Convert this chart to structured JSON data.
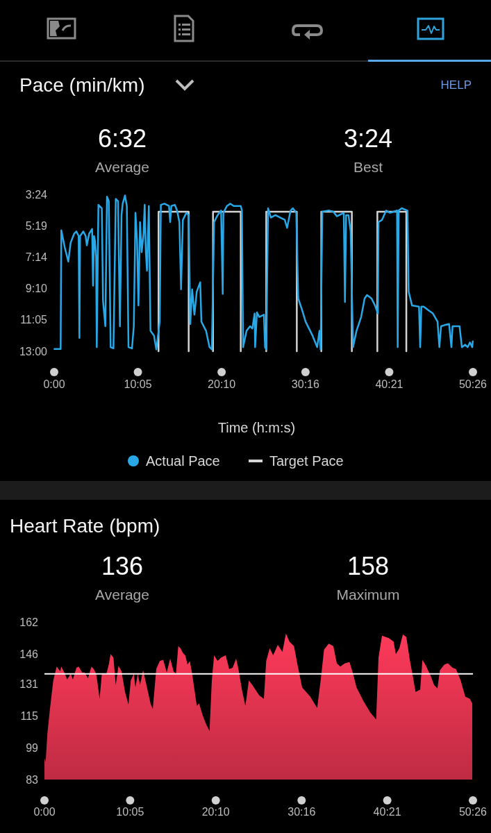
{
  "chart_data": [
    {
      "type": "line",
      "title": "Pace (min/km)",
      "annotations": [
        "6:32",
        "Average",
        "3:24",
        "Best",
        "HELP"
      ],
      "xlabel": "Time (h:m:s)",
      "legend": "bottom",
      "xlim": [
        0,
        50.4333
      ],
      "ylim": [
        13,
        3.4
      ],
      "xticks": [
        {
          "value": 0,
          "label": "0:00"
        },
        {
          "value": 10.0833,
          "label": "10:05"
        },
        {
          "value": 20.1667,
          "label": "20:10"
        },
        {
          "value": 30.2667,
          "label": "30:16"
        },
        {
          "value": 40.35,
          "label": "40:21"
        },
        {
          "value": 50.4333,
          "label": "50:26"
        }
      ],
      "yticks": [
        {
          "value": 3.4,
          "label": "3:24"
        },
        {
          "value": 5.3167,
          "label": "5:19"
        },
        {
          "value": 7.2333,
          "label": "7:14"
        },
        {
          "value": 9.1667,
          "label": "9:10"
        },
        {
          "value": 11.0833,
          "label": "11:05"
        },
        {
          "value": 13,
          "label": "13:00"
        }
      ],
      "series": [
        {
          "name": "Actual Pace",
          "color": "#29a8e8",
          "x": [
            0.03,
            0.78,
            0.86,
            1.28,
            1.7,
            1.98,
            2.4,
            2.68,
            2.95,
            3.04,
            3.12,
            3.51,
            3.79,
            3.93,
            4.21,
            4.57,
            4.68,
            4.8,
            4.91,
            5.05,
            5.13,
            5.33,
            5.74,
            5.88,
            6.16,
            6.36,
            6.58,
            6.8,
            7.14,
            7.42,
            7.69,
            7.92,
            8.11,
            8.25,
            8.53,
            8.75,
            8.95,
            9.37,
            9.59,
            9.79,
            9.98,
            10.15,
            10.34,
            10.54,
            10.76,
            10.9,
            11.04,
            11.18,
            11.4,
            11.6,
            12.02,
            12.3,
            12.71,
            12.85,
            13.27,
            13.83,
            13.97,
            14.11,
            14.53,
            14.8,
            15.08,
            15.28,
            15.5,
            15.92,
            16.2,
            16.39,
            16.62,
            16.89,
            17.17,
            17.59,
            17.73,
            18.29,
            18.71,
            18.99,
            19.26,
            19.68,
            20.1,
            20.3,
            20.38,
            20.8,
            21.22,
            21.63,
            22.47,
            22.61,
            22.75,
            23.17,
            23.59,
            23.87,
            24.14,
            24.2,
            24.42,
            24.7,
            25.26,
            25.4,
            25.54,
            25.76,
            26.1,
            26.65,
            27.21,
            27.77,
            28.05,
            28.47,
            28.74,
            29.16,
            29.39,
            29.86,
            30.28,
            31.11,
            31.67,
            31.95,
            32.09,
            32.29,
            33.07,
            33.62,
            34.04,
            34.88,
            35.02,
            35.16,
            35.44,
            35.71,
            35.99,
            36.41,
            36.97,
            37.39,
            37.67,
            38.22,
            38.64,
            38.98,
            39.06,
            39.48,
            39.98,
            40.45,
            40.87,
            41.29,
            41.37,
            41.49,
            41.85,
            42.55,
            42.69,
            43.1,
            43.94,
            44.08,
            44.22,
            44.5,
            45.05,
            45.61,
            46.17,
            46.39,
            46.59,
            47.01,
            47.56,
            47.84,
            47.98,
            48.4,
            48.82,
            49.1,
            49.51,
            49.79,
            50.07,
            50.35,
            50.41
          ],
          "values": [
            12.86,
            12.86,
            5.6,
            6.66,
            7.51,
            6.37,
            5.81,
            5.67,
            5.95,
            12.18,
            5.95,
            5.67,
            5.95,
            6.52,
            5.81,
            5.52,
            8.99,
            5.95,
            6.23,
            7.22,
            12.75,
            4.04,
            4.25,
            9.91,
            11.47,
            3.54,
            3.82,
            12.75,
            12.82,
            3.68,
            3.82,
            11.47,
            4.67,
            3.97,
            3.47,
            4.11,
            12.75,
            12.82,
            11.47,
            4.53,
            6.23,
            10.2,
            5.1,
            6.94,
            5.81,
            4.04,
            6.94,
            8.07,
            4.11,
            11.75,
            12.04,
            12.89,
            11.19,
            4.04,
            3.97,
            4.11,
            5.1,
            4.11,
            4.04,
            4.39,
            5.1,
            9.21,
            4.96,
            4.53,
            4.67,
            11.33,
            9.21,
            10.76,
            9.35,
            8.78,
            11.19,
            11.75,
            12.75,
            12.89,
            5.1,
            4.67,
            4.39,
            9.49,
            4.53,
            4.11,
            3.97,
            4.11,
            4.11,
            4.39,
            12.75,
            11.75,
            11.47,
            11.61,
            10.69,
            12.75,
            10.62,
            10.9,
            10.76,
            12.75,
            12.89,
            4.25,
            4.82,
            4.67,
            4.82,
            4.96,
            5.45,
            4.39,
            4.25,
            4.53,
            9.77,
            10.48,
            11.19,
            12.04,
            12.75,
            11.75,
            12.89,
            4.46,
            4.39,
            4.46,
            4.74,
            4.53,
            9.98,
            4.67,
            4.67,
            5.67,
            12.75,
            11.75,
            10.9,
            9.77,
            9.56,
            9.77,
            10.2,
            10.69,
            5.1,
            4.96,
            4.39,
            4.53,
            4.46,
            4.39,
            12.75,
            4.39,
            4.25,
            4.39,
            9.35,
            10.2,
            10.27,
            12.75,
            10.27,
            10.27,
            10.48,
            10.69,
            11.19,
            12.75,
            11.47,
            11.4,
            11.33,
            12.75,
            11.47,
            11.47,
            11.47,
            12.75,
            12.6,
            12.75,
            12.46,
            12.75,
            12.39
          ]
        },
        {
          "name": "Target Pace",
          "color": "#d4d4d4",
          "x": [
            12.57,
            12.57,
            16.2,
            16.2,
            17.5,
            19.13,
            19.13,
            22.47,
            22.47,
            24.0,
            25.54,
            25.54,
            29.22,
            29.22,
            30.5,
            32.17,
            32.17,
            35.85,
            35.85,
            37.5,
            38.92,
            38.92,
            42.41,
            42.41
          ],
          "values": [
            13,
            4.46,
            4.46,
            13,
            null,
            13,
            4.46,
            4.46,
            13,
            null,
            13,
            4.46,
            4.46,
            13,
            null,
            13,
            4.46,
            4.46,
            13,
            null,
            13,
            4.46,
            4.46,
            13
          ]
        }
      ]
    },
    {
      "type": "area",
      "title": "Heart Rate (bpm)",
      "annotations": [
        "136",
        "Average",
        "158",
        "Maximum"
      ],
      "xlim": [
        0,
        50.4333
      ],
      "ylim": [
        83,
        162
      ],
      "xticks": [
        {
          "value": 0,
          "label": "0:00"
        },
        {
          "value": 10.0833,
          "label": "10:05"
        },
        {
          "value": 20.1667,
          "label": "20:10"
        },
        {
          "value": 30.2667,
          "label": "30:16"
        },
        {
          "value": 40.35,
          "label": "40:21"
        },
        {
          "value": 50.4333,
          "label": "50:26"
        }
      ],
      "yticks": [
        83,
        99,
        115,
        131,
        146,
        162
      ],
      "ref_lines": [
        {
          "axis": "y",
          "value": 136,
          "color": "#ffffff"
        }
      ],
      "series": [
        {
          "color": "#e0334f",
          "x": [
            0.0,
            0.14,
            0.35,
            0.63,
            1.04,
            1.44,
            1.85,
            1.99,
            2.4,
            2.67,
            2.94,
            3.08,
            3.35,
            3.76,
            4.03,
            4.44,
            4.71,
            5.12,
            5.53,
            5.8,
            6.08,
            6.21,
            6.49,
            6.76,
            7.3,
            7.57,
            7.79,
            8.12,
            8.39,
            8.72,
            9.07,
            9.48,
            9.89,
            10.16,
            10.52,
            10.71,
            10.98,
            11.25,
            11.61,
            12.07,
            12.48,
            12.75,
            13.16,
            13.57,
            13.98,
            14.39,
            14.8,
            15.2,
            15.48,
            15.75,
            16.02,
            16.29,
            16.57,
            16.84,
            17.11,
            17.38,
            17.93,
            18.2,
            18.61,
            19.02,
            19.43,
            19.7,
            19.97,
            20.38,
            20.79,
            21.33,
            21.74,
            22.15,
            22.56,
            22.83,
            23.24,
            23.65,
            24.06,
            24.47,
            25.28,
            25.83,
            26.1,
            26.51,
            26.92,
            27.46,
            28.01,
            28.42,
            28.83,
            29.37,
            29.78,
            30.33,
            31.28,
            32.1,
            32.51,
            32.91,
            33.46,
            34.0,
            34.41,
            34.82,
            35.37,
            35.91,
            36.32,
            36.73,
            37.55,
            38.36,
            39.04,
            39.32,
            39.73,
            40.54,
            41.09,
            41.36,
            41.77,
            42.18,
            42.59,
            43.0,
            43.4,
            43.68,
            44.22,
            44.49,
            44.9,
            45.45,
            45.86,
            46.26,
            46.54,
            47.08,
            47.49,
            48.04,
            48.44,
            48.99,
            49.53,
            50.08,
            50.35
          ],
          "values": [
            93.6,
            91.8,
            106.2,
            117.7,
            132.7,
            139.6,
            137.3,
            139.6,
            136.1,
            133.2,
            135.0,
            136.1,
            133.2,
            139.0,
            139.6,
            136.7,
            136.7,
            133.8,
            139.6,
            138.4,
            136.1,
            132.7,
            123.5,
            136.1,
            136.1,
            140.7,
            145.9,
            144.2,
            130.4,
            140.1,
            137.3,
            126.9,
            120.6,
            132.7,
            136.1,
            129.2,
            136.1,
            130.4,
            137.8,
            129.2,
            121.2,
            118.3,
            138.4,
            142.4,
            143.0,
            136.7,
            143.6,
            137.3,
            136.1,
            149.9,
            148.8,
            146.5,
            145.3,
            140.7,
            142.4,
            136.1,
            120.0,
            121.2,
            115.4,
            110.8,
            107.4,
            132.7,
            145.3,
            142.4,
            144.2,
            145.3,
            138.4,
            139.0,
            143.6,
            138.4,
            128.1,
            120.0,
            132.7,
            130.4,
            125.2,
            123.5,
            142.4,
            148.8,
            145.3,
            150.5,
            147.0,
            156.2,
            152.2,
            149.9,
            140.7,
            129.2,
            124.6,
            118.9,
            132.7,
            148.2,
            151.1,
            149.9,
            141.3,
            139.6,
            141.3,
            141.9,
            136.1,
            129.2,
            122.3,
            116.6,
            113.1,
            144.2,
            155.1,
            153.9,
            152.2,
            145.9,
            148.8,
            155.7,
            154.5,
            143.0,
            133.8,
            126.9,
            128.1,
            143.0,
            140.1,
            135.0,
            130.4,
            128.7,
            137.8,
            140.7,
            141.3,
            139.0,
            138.4,
            132.7,
            124.6,
            123.5,
            121.2
          ]
        }
      ]
    }
  ]
}
